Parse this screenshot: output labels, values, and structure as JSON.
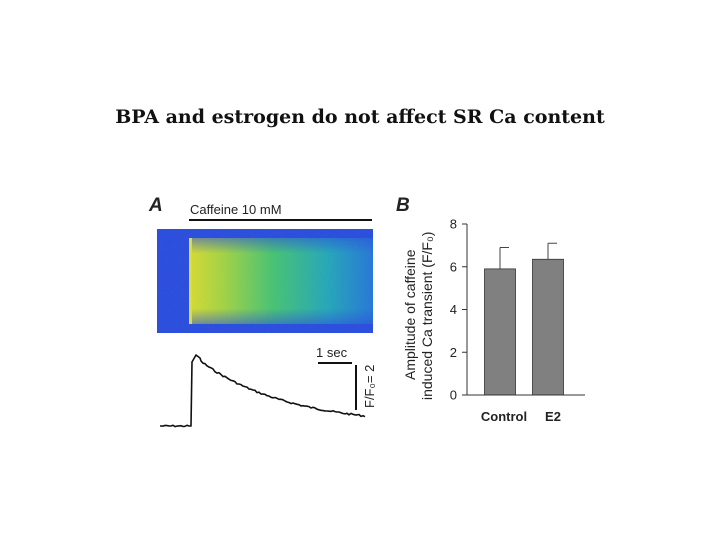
{
  "title": "BPA and estrogen do not affect SR Ca content",
  "panel_a": {
    "letter": "A",
    "stimulus_label": "Caffeine 10 mM",
    "time_scale_label": "1 sec",
    "amp_scale_label": "F/F₀= 2",
    "colors": {
      "background": "#1f45e0",
      "peak": "#c9dd30",
      "trace": "#111111"
    }
  },
  "panel_b": {
    "letter": "B"
  },
  "chart_data": {
    "type": "bar",
    "categories": [
      "Control",
      "E2"
    ],
    "values": [
      5.9,
      6.35
    ],
    "errors": [
      1.0,
      0.75
    ],
    "ylabel_line1": "Amplitude of caffeine",
    "ylabel_line2": "induced Ca transient (F/F₀)",
    "ylim": [
      0,
      8
    ],
    "yticks": [
      0,
      2,
      4,
      6,
      8
    ],
    "bar_color": "#808080"
  }
}
